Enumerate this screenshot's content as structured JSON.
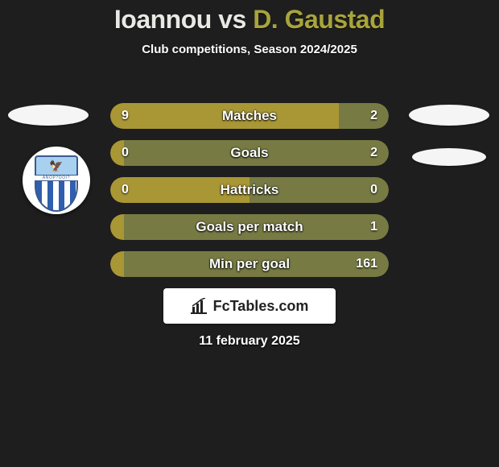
{
  "title": {
    "player1": "Ioannou",
    "vs": "vs",
    "player2": "D. Gaustad",
    "player1_color": "#e8e8e4",
    "player2_color": "#a8a43c"
  },
  "subtitle": "Club competitions, Season 2024/2025",
  "date": "11 february 2025",
  "branding": {
    "text": "FcTables.com",
    "icon": "bar-chart-icon",
    "bg": "#ffffff"
  },
  "club_badge": {
    "name": "Anorthosis",
    "band_text": "ANOP?OOI?",
    "colors": {
      "sky": "#a8d0ef",
      "stripe_blue": "#2f5fae",
      "border": "#3a5a8f"
    }
  },
  "bars": {
    "left_color": "#a99735",
    "right_color": "#777b43",
    "track_color": "#252525",
    "label_color": "#ffffff",
    "label_fontsize": 17,
    "value_fontsize": 16,
    "rows": [
      {
        "label": "Matches",
        "left_value": "9",
        "right_value": "2",
        "left_pct": 82,
        "right_pct": 18
      },
      {
        "label": "Goals",
        "left_value": "0",
        "right_value": "2",
        "left_pct": 5,
        "right_pct": 95
      },
      {
        "label": "Hattricks",
        "left_value": "0",
        "right_value": "0",
        "left_pct": 50,
        "right_pct": 50
      },
      {
        "label": "Goals per match",
        "left_value": "",
        "right_value": "1",
        "left_pct": 5,
        "right_pct": 95
      },
      {
        "label": "Min per goal",
        "left_value": "",
        "right_value": "161",
        "left_pct": 5,
        "right_pct": 95
      }
    ]
  },
  "side_blobs": {
    "color": "#f5f5f5"
  }
}
